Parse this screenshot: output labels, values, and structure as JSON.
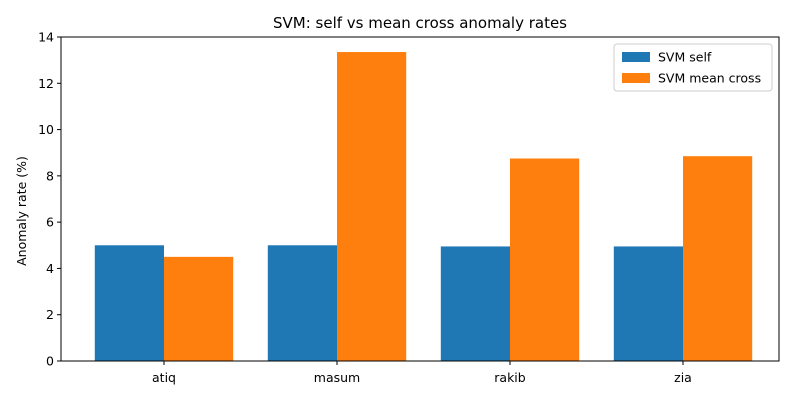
{
  "chart_data": {
    "type": "bar",
    "title": "SVM: self vs mean cross anomaly rates",
    "xlabel": "",
    "ylabel": "Anomaly rate (%)",
    "categories": [
      "atiq",
      "masum",
      "rakib",
      "zia"
    ],
    "series": [
      {
        "name": "SVM self",
        "color": "#1f77b4",
        "values": [
          5.0,
          5.0,
          4.95,
          4.95
        ]
      },
      {
        "name": "SVM mean cross",
        "color": "#ff7f0e",
        "values": [
          4.5,
          13.35,
          8.75,
          8.85
        ]
      }
    ],
    "ylim": [
      0,
      14
    ],
    "yticks": [
      "0",
      "2",
      "4",
      "6",
      "8",
      "10",
      "12",
      "14"
    ],
    "grid": false,
    "legend": "top-right"
  }
}
